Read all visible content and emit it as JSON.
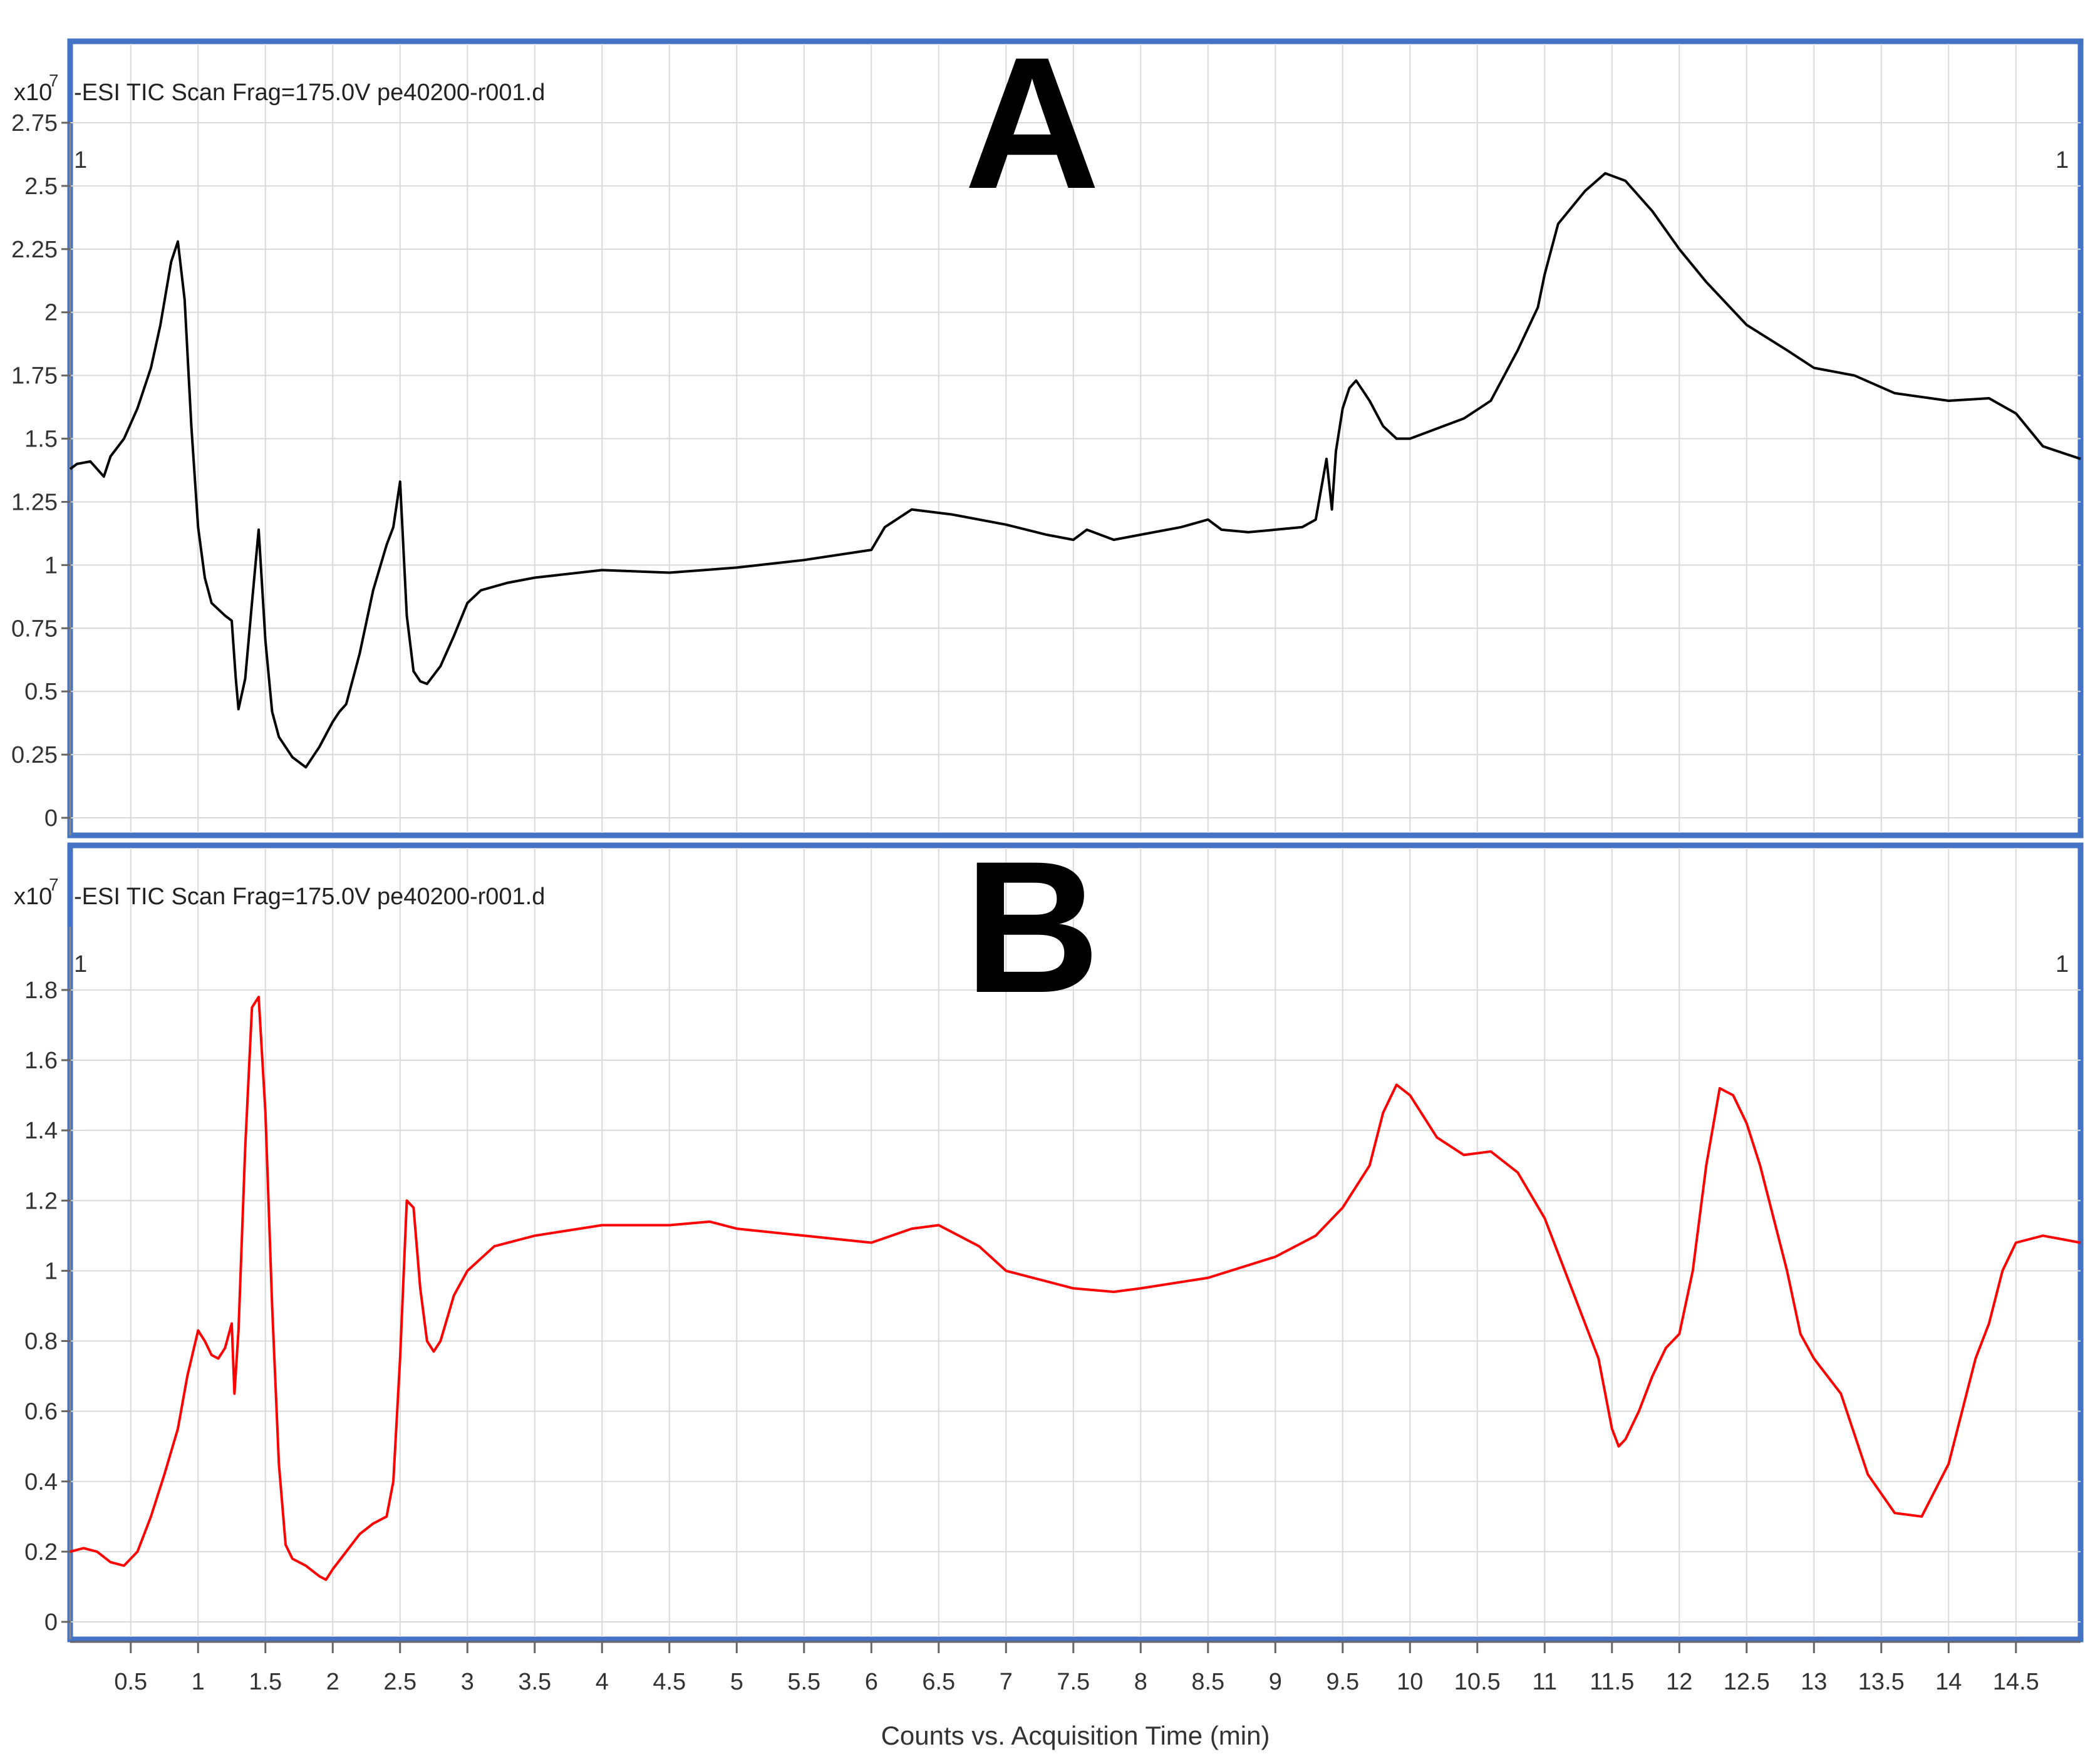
{
  "chart_data": [
    {
      "type": "line",
      "panel_letter": "A",
      "title": "-ESI TIC Scan Frag=175.0V pe40200-r001.d",
      "y_multiplier": "x10",
      "y_exponent": "7",
      "corner_marker_left": "1",
      "corner_marker_right": "1",
      "ylim": [
        0,
        2.75
      ],
      "yticks": [
        "0",
        "0.25",
        "0.5",
        "0.75",
        "1",
        "1.25",
        "1.5",
        "1.75",
        "2",
        "2.25",
        "2.5",
        "2.75"
      ],
      "xlim": [
        0.05,
        14.98
      ],
      "grid": true,
      "series": [
        {
          "color": "#000000",
          "x": [
            0.05,
            0.1,
            0.2,
            0.3,
            0.35,
            0.45,
            0.55,
            0.65,
            0.72,
            0.8,
            0.85,
            0.9,
            0.95,
            1.0,
            1.05,
            1.1,
            1.2,
            1.25,
            1.28,
            1.3,
            1.35,
            1.4,
            1.45,
            1.5,
            1.55,
            1.6,
            1.7,
            1.8,
            1.9,
            2.0,
            2.05,
            2.1,
            2.2,
            2.3,
            2.4,
            2.45,
            2.5,
            2.55,
            2.6,
            2.65,
            2.7,
            2.8,
            2.9,
            3.0,
            3.1,
            3.3,
            3.5,
            4.0,
            4.5,
            5.0,
            5.5,
            6.0,
            6.1,
            6.3,
            6.6,
            7.0,
            7.3,
            7.5,
            7.6,
            7.8,
            8.0,
            8.3,
            8.5,
            8.6,
            8.8,
            9.0,
            9.2,
            9.3,
            9.38,
            9.42,
            9.45,
            9.5,
            9.55,
            9.6,
            9.7,
            9.8,
            9.9,
            10.0,
            10.2,
            10.4,
            10.6,
            10.8,
            10.95,
            11.0,
            11.1,
            11.3,
            11.45,
            11.6,
            11.8,
            12.0,
            12.2,
            12.5,
            12.8,
            13.0,
            13.3,
            13.6,
            14.0,
            14.3,
            14.5,
            14.7,
            14.98
          ],
          "y": [
            1.38,
            1.4,
            1.41,
            1.35,
            1.43,
            1.5,
            1.62,
            1.78,
            1.95,
            2.2,
            2.28,
            2.05,
            1.55,
            1.15,
            0.95,
            0.85,
            0.8,
            0.78,
            0.55,
            0.43,
            0.55,
            0.85,
            1.14,
            0.7,
            0.42,
            0.32,
            0.24,
            0.2,
            0.28,
            0.38,
            0.42,
            0.45,
            0.65,
            0.9,
            1.08,
            1.15,
            1.33,
            0.8,
            0.58,
            0.54,
            0.53,
            0.6,
            0.72,
            0.85,
            0.9,
            0.93,
            0.95,
            0.98,
            0.97,
            0.99,
            1.02,
            1.06,
            1.15,
            1.22,
            1.2,
            1.16,
            1.12,
            1.1,
            1.14,
            1.1,
            1.12,
            1.15,
            1.18,
            1.14,
            1.13,
            1.14,
            1.15,
            1.18,
            1.42,
            1.22,
            1.45,
            1.62,
            1.7,
            1.73,
            1.65,
            1.55,
            1.5,
            1.5,
            1.54,
            1.58,
            1.65,
            1.85,
            2.02,
            2.15,
            2.35,
            2.48,
            2.55,
            2.52,
            2.4,
            2.25,
            2.12,
            1.95,
            1.85,
            1.78,
            1.75,
            1.68,
            1.65,
            1.66,
            1.6,
            1.47,
            1.42
          ]
        }
      ]
    },
    {
      "type": "line",
      "panel_letter": "B",
      "title": "-ESI TIC Scan Frag=175.0V pe40200-r001.d",
      "y_multiplier": "x10",
      "y_exponent": "7",
      "corner_marker_left": "1",
      "corner_marker_right": "1",
      "ylim": [
        0,
        1.98
      ],
      "yticks": [
        "0",
        "0.2",
        "0.4",
        "0.6",
        "0.8",
        "1",
        "1.2",
        "1.4",
        "1.6",
        "1.8"
      ],
      "xlim": [
        0.05,
        14.98
      ],
      "xticks": [
        "0.5",
        "1",
        "1.5",
        "2",
        "2.5",
        "3",
        "3.5",
        "4",
        "4.5",
        "5",
        "5.5",
        "6",
        "6.5",
        "7",
        "7.5",
        "8",
        "8.5",
        "9",
        "9.5",
        "10",
        "10.5",
        "11",
        "11.5",
        "12",
        "12.5",
        "13",
        "13.5",
        "14",
        "14.5"
      ],
      "xlabel": "Counts vs. Acquisition Time (min)",
      "grid": true,
      "series": [
        {
          "color": "#ff0000",
          "x": [
            0.05,
            0.15,
            0.25,
            0.35,
            0.45,
            0.55,
            0.65,
            0.75,
            0.85,
            0.92,
            1.0,
            1.05,
            1.1,
            1.15,
            1.2,
            1.25,
            1.27,
            1.3,
            1.35,
            1.4,
            1.45,
            1.5,
            1.55,
            1.6,
            1.65,
            1.7,
            1.8,
            1.9,
            1.95,
            2.0,
            2.1,
            2.2,
            2.3,
            2.4,
            2.45,
            2.5,
            2.55,
            2.6,
            2.65,
            2.7,
            2.75,
            2.8,
            2.9,
            3.0,
            3.2,
            3.5,
            4.0,
            4.5,
            4.8,
            5.0,
            5.5,
            6.0,
            6.3,
            6.5,
            6.8,
            7.0,
            7.3,
            7.5,
            7.8,
            8.0,
            8.5,
            9.0,
            9.3,
            9.5,
            9.7,
            9.8,
            9.9,
            10.0,
            10.2,
            10.4,
            10.6,
            10.8,
            11.0,
            11.2,
            11.4,
            11.5,
            11.55,
            11.6,
            11.7,
            11.8,
            11.9,
            12.0,
            12.1,
            12.2,
            12.3,
            12.4,
            12.5,
            12.6,
            12.7,
            12.8,
            12.9,
            13.0,
            13.2,
            13.4,
            13.6,
            13.8,
            14.0,
            14.1,
            14.2,
            14.3,
            14.4,
            14.5,
            14.7,
            14.98
          ],
          "y": [
            0.2,
            0.21,
            0.2,
            0.17,
            0.16,
            0.2,
            0.3,
            0.42,
            0.55,
            0.7,
            0.83,
            0.8,
            0.76,
            0.75,
            0.78,
            0.85,
            0.65,
            0.83,
            1.35,
            1.75,
            1.78,
            1.45,
            0.9,
            0.45,
            0.22,
            0.18,
            0.16,
            0.13,
            0.12,
            0.15,
            0.2,
            0.25,
            0.28,
            0.3,
            0.4,
            0.75,
            1.2,
            1.18,
            0.95,
            0.8,
            0.77,
            0.8,
            0.93,
            1.0,
            1.07,
            1.1,
            1.13,
            1.13,
            1.14,
            1.12,
            1.1,
            1.08,
            1.12,
            1.13,
            1.07,
            1.0,
            0.97,
            0.95,
            0.94,
            0.95,
            0.98,
            1.04,
            1.1,
            1.18,
            1.3,
            1.45,
            1.53,
            1.5,
            1.38,
            1.33,
            1.34,
            1.28,
            1.15,
            0.95,
            0.75,
            0.55,
            0.5,
            0.52,
            0.6,
            0.7,
            0.78,
            0.82,
            1.0,
            1.3,
            1.52,
            1.5,
            1.42,
            1.3,
            1.15,
            1.0,
            0.82,
            0.75,
            0.65,
            0.42,
            0.31,
            0.3,
            0.45,
            0.6,
            0.75,
            0.85,
            1.0,
            1.08,
            1.1,
            1.08
          ]
        }
      ]
    }
  ]
}
